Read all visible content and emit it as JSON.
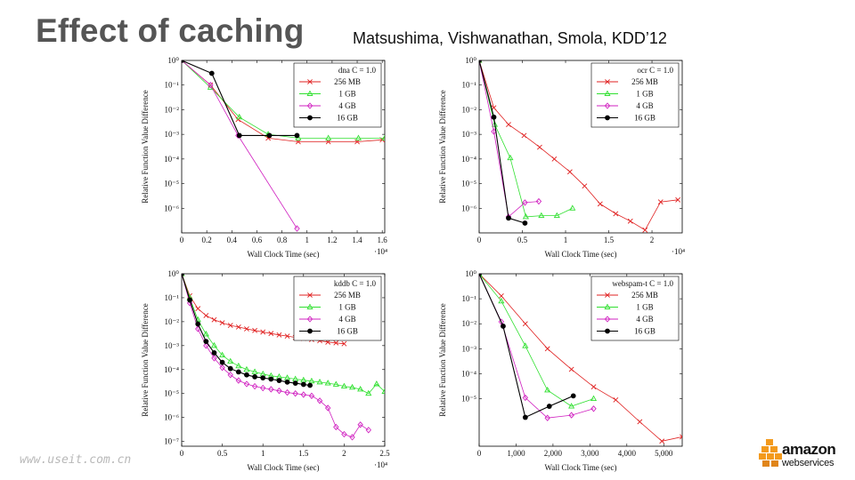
{
  "slide": {
    "title": "Effect of caching",
    "citation": "Matsushima, Vishwanathan, Smola, KDD’12",
    "watermark": "www.useit.com.cn",
    "logo": {
      "word": "amazon",
      "sub": "webservices"
    }
  },
  "colors": {
    "256 MB": "#e02020",
    "1 GB": "#30e030",
    "4 GB": "#d020c0",
    "16 GB": "#000000",
    "logo_cube": "#f39a1d"
  },
  "chart_data": [
    {
      "type": "line",
      "yscale": "log",
      "legend_title": "dna C = 1.0",
      "legend_position": "top-right",
      "xlabel": "Wall Clock Time (sec)",
      "ylabel": "Relative Function Value Difference",
      "x_multiplier": "·10^4",
      "xlim": [
        0,
        16200
      ],
      "ylim_exp": [
        -7,
        0
      ],
      "x_ticks": [
        0,
        2000,
        4000,
        6000,
        8000,
        10000,
        12000,
        14000,
        16000
      ],
      "x_tick_labels": [
        "0",
        "0.2",
        "0.4",
        "0.6",
        "0.8",
        "1",
        "1.2",
        "1.4",
        "1.6"
      ],
      "y_tick_exps": [
        0,
        -1,
        -2,
        -3,
        -4,
        -5,
        -6
      ],
      "series": [
        {
          "name": "256 MB",
          "marker": "x",
          "x": [
            0,
            2300,
            4500,
            6900,
            9300,
            11700,
            14000,
            16000
          ],
          "y": [
            1,
            0.1,
            0.004,
            0.0007,
            0.0005,
            0.0005,
            0.0005,
            0.0006
          ]
        },
        {
          "name": "1 GB",
          "marker": "triangle",
          "x": [
            0,
            2300,
            4600,
            6900,
            9300,
            11700,
            14100,
            16200
          ],
          "y": [
            1,
            0.08,
            0.005,
            0.001,
            0.0007,
            0.0007,
            0.0007,
            0.0007
          ]
        },
        {
          "name": "4 GB",
          "marker": "diamond",
          "x": [
            0,
            2300,
            4500,
            9200
          ],
          "y": [
            1,
            0.1,
            0.0009,
            1.5e-07
          ]
        },
        {
          "name": "16 GB",
          "marker": "circle",
          "x": [
            0,
            2400,
            4600,
            7000,
            9200
          ],
          "y": [
            1,
            0.3,
            0.0009,
            0.0009,
            0.0009
          ]
        }
      ]
    },
    {
      "type": "line",
      "yscale": "log",
      "legend_title": "ocr C = 1.0",
      "legend_position": "top-right",
      "xlabel": "Wall Clock Time (sec)",
      "ylabel": "Relative Function Value Difference",
      "x_multiplier": "·10^4",
      "xlim": [
        0,
        23500
      ],
      "ylim_exp": [
        -7,
        0
      ],
      "x_ticks": [
        0,
        5000,
        10000,
        15000,
        20000
      ],
      "x_tick_labels": [
        "0",
        "0.5",
        "1",
        "1.5",
        "2"
      ],
      "y_tick_exps": [
        0,
        -1,
        -2,
        -3,
        -4,
        -5,
        -6
      ],
      "series": [
        {
          "name": "256 MB",
          "marker": "x",
          "x": [
            0,
            1700,
            3400,
            5200,
            7000,
            8700,
            10500,
            12200,
            14000,
            15800,
            17500,
            19200,
            21000,
            23000
          ],
          "y": [
            1,
            0.012,
            0.0025,
            0.0009,
            0.0003,
            0.0001,
            3e-05,
            8e-06,
            1.5e-06,
            6e-07,
            3e-07,
            1.3e-07,
            1.8e-06,
            2.2e-06
          ]
        },
        {
          "name": "1 GB",
          "marker": "triangle",
          "x": [
            0,
            1800,
            3600,
            5400,
            7200,
            9000,
            10800
          ],
          "y": [
            1,
            0.0025,
            0.00011,
            4.5e-07,
            5e-07,
            5e-07,
            1e-06
          ]
        },
        {
          "name": "4 GB",
          "marker": "diamond",
          "x": [
            0,
            1700,
            3400,
            5300,
            6900
          ],
          "y": [
            1,
            0.0013,
            4.5e-07,
            1.7e-06,
            1.9e-06
          ]
        },
        {
          "name": "16 GB",
          "marker": "circle",
          "x": [
            0,
            1700,
            3400,
            5300
          ],
          "y": [
            1,
            0.005,
            4e-07,
            2.5e-07
          ]
        }
      ]
    },
    {
      "type": "line",
      "yscale": "log",
      "legend_title": "kddb C = 1.0",
      "legend_position": "top-right",
      "xlabel": "Wall Clock Time (sec)",
      "ylabel": "Relative Function Value Difference",
      "x_multiplier": "·10^4",
      "xlim": [
        0,
        25000
      ],
      "ylim_exp": [
        -7.2,
        0
      ],
      "x_ticks": [
        0,
        5000,
        10000,
        15000,
        20000,
        25000
      ],
      "x_tick_labels": [
        "0",
        "0.5",
        "1",
        "1.5",
        "2",
        "2.5"
      ],
      "y_tick_exps": [
        0,
        -1,
        -2,
        -3,
        -4,
        -5,
        -6,
        -7
      ],
      "series": [
        {
          "name": "256 MB",
          "marker": "x",
          "x": [
            0,
            1000,
            2000,
            3000,
            4000,
            5000,
            6000,
            7000,
            8000,
            9000,
            10000,
            11000,
            12000,
            13000,
            14000,
            15000,
            16000,
            17000,
            18000,
            19000,
            20000
          ],
          "y": [
            1,
            0.12,
            0.035,
            0.018,
            0.012,
            0.009,
            0.007,
            0.006,
            0.005,
            0.0043,
            0.0037,
            0.0032,
            0.0028,
            0.0025,
            0.0022,
            0.002,
            0.0018,
            0.0016,
            0.0014,
            0.0013,
            0.0012
          ]
        },
        {
          "name": "1 GB",
          "marker": "triangle",
          "x": [
            0,
            1000,
            2000,
            3000,
            4000,
            5000,
            6000,
            7000,
            8000,
            9000,
            10000,
            11000,
            12000,
            13000,
            14000,
            15000,
            16000,
            17000,
            18000,
            19000,
            20000,
            21000,
            22000,
            23000,
            24000,
            25000
          ],
          "y": [
            1,
            0.1,
            0.012,
            0.003,
            0.001,
            0.0004,
            0.00022,
            0.00014,
            0.0001,
            8e-05,
            6.5e-05,
            5.5e-05,
            5e-05,
            4.5e-05,
            4e-05,
            3.6e-05,
            3.3e-05,
            3e-05,
            2.7e-05,
            2.4e-05,
            2e-05,
            1.8e-05,
            1.5e-05,
            1e-05,
            2.5e-05,
            1.2e-05
          ]
        },
        {
          "name": "4 GB",
          "marker": "diamond",
          "x": [
            0,
            1000,
            2000,
            3000,
            4000,
            5000,
            6000,
            7000,
            8000,
            9000,
            10000,
            11000,
            12000,
            13000,
            14000,
            15000,
            16000,
            17000,
            18000,
            19000,
            20000,
            21000,
            22000,
            23000
          ],
          "y": [
            1,
            0.06,
            0.005,
            0.001,
            0.0003,
            0.00012,
            6e-05,
            3.5e-05,
            2.5e-05,
            2e-05,
            1.7e-05,
            1.5e-05,
            1.3e-05,
            1.1e-05,
            1e-05,
            9e-06,
            8e-06,
            5e-06,
            2.5e-06,
            4e-07,
            2e-07,
            1.5e-07,
            5e-07,
            3e-07
          ]
        },
        {
          "name": "16 GB",
          "marker": "circle",
          "x": [
            0,
            1000,
            2000,
            3000,
            4000,
            5000,
            6000,
            7000,
            8000,
            9000,
            10000,
            11000,
            12000,
            13000,
            14000,
            15000,
            15800
          ],
          "y": [
            1,
            0.08,
            0.008,
            0.0015,
            0.0005,
            0.0002,
            0.00011,
            8e-05,
            6e-05,
            5e-05,
            4.5e-05,
            4e-05,
            3.5e-05,
            3e-05,
            2.7e-05,
            2.4e-05,
            2.2e-05
          ]
        }
      ]
    },
    {
      "type": "line",
      "yscale": "log",
      "legend_title": "webspam-t C = 1.0",
      "legend_position": "top-right",
      "xlabel": "Wall Clock Time (sec)",
      "ylabel": "Relative Function Value Difference",
      "x_multiplier": "",
      "xlim": [
        0,
        5500
      ],
      "ylim_exp": [
        -6.9,
        0
      ],
      "x_ticks": [
        0,
        1000,
        2000,
        3000,
        4000,
        5000
      ],
      "x_tick_labels": [
        "0",
        "1,000",
        "2,000",
        "3,000",
        "4,000",
        "5,000"
      ],
      "y_tick_exps": [
        0,
        -1,
        -2,
        -3,
        -4,
        -5
      ],
      "series": [
        {
          "name": "256 MB",
          "marker": "x",
          "x": [
            0,
            600,
            1250,
            1850,
            2500,
            3100,
            3700,
            4350,
            4950,
            5500
          ],
          "y": [
            1,
            0.13,
            0.01,
            0.001,
            0.00015,
            3e-05,
            9e-06,
            1.2e-06,
            2e-07,
            3e-07
          ]
        },
        {
          "name": "1 GB",
          "marker": "triangle",
          "x": [
            0,
            600,
            1250,
            1850,
            2500,
            3100
          ],
          "y": [
            1,
            0.08,
            0.0013,
            2.2e-05,
            5e-06,
            1e-05
          ]
        },
        {
          "name": "4 GB",
          "marker": "diamond",
          "x": [
            0,
            600,
            1250,
            1850,
            2500,
            3100
          ],
          "y": [
            1,
            0.012,
            1.1e-05,
            1.7e-06,
            2.2e-06,
            4e-06
          ]
        },
        {
          "name": "16 GB",
          "marker": "circle",
          "x": [
            0,
            650,
            1250,
            1900,
            2550
          ],
          "y": [
            1,
            0.008,
            1.8e-06,
            5e-06,
            1.3e-05
          ]
        }
      ]
    }
  ]
}
